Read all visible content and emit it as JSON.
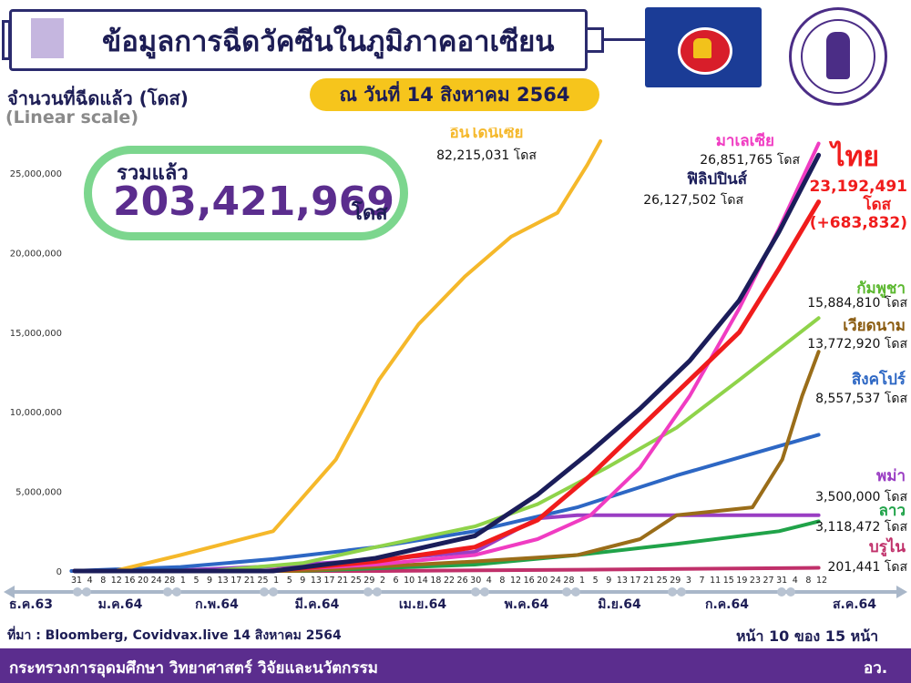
{
  "header": {
    "title": "ข้อมูลการฉีดวัคซีนในภูมิภาคอาเซียน"
  },
  "y_axis": {
    "title": "จำนวนที่ฉีดแล้ว (โดส)",
    "subtitle": "(Linear scale)"
  },
  "date_label": "ณ วันที่ 14 สิงหาคม 2564",
  "total": {
    "label": "รวมแล้ว",
    "value": "203,421,969",
    "unit": "โดส"
  },
  "source": "ที่มา : Bloomberg, Covidvax.live 14 สิงหาคม 2564",
  "page_number": "หน้า 10 ของ 15 หน้า",
  "footer": {
    "ministry": "กระทรวงการอุดมศึกษา วิทยาศาสตร์ วิจัยและนวัตกรรม",
    "abbr": "อว."
  },
  "colors": {
    "title": "#1d1d55",
    "footer": "#5b2d8e",
    "pill": "#f6c51c",
    "total_border": "#7cd68e"
  },
  "chart_data": {
    "type": "line",
    "ylim": [
      0,
      27000000
    ],
    "yticks": [
      "0",
      "5,000,000",
      "10,000,000",
      "15,000,000",
      "20,000,000",
      "25,000,000"
    ],
    "day_ticks": [
      "31",
      "4",
      "8",
      "12",
      "16",
      "20",
      "24",
      "28",
      "1",
      "5",
      "9",
      "13",
      "17",
      "21",
      "25",
      "1",
      "5",
      "9",
      "13",
      "17",
      "21",
      "25",
      "29",
      "2",
      "6",
      "10",
      "14",
      "18",
      "22",
      "26",
      "30",
      "4",
      "8",
      "12",
      "16",
      "20",
      "24",
      "28",
      "1",
      "5",
      "9",
      "13",
      "17",
      "21",
      "25",
      "29",
      "3",
      "7",
      "11",
      "15",
      "19",
      "23",
      "27",
      "31",
      "4",
      "8",
      "12"
    ],
    "month_labels": [
      "ธ.ค.63",
      "ม.ค.64",
      "ก.พ.64",
      "มี.ค.64",
      "เม.ย.64",
      "พ.ค.64",
      "มิ.ย.64",
      "ก.ค.64",
      "ส.ค.64"
    ],
    "series": [
      {
        "name": "อินโดนีเซีย",
        "value_text": "82,215,031 โดส",
        "color": "#f5b82a",
        "x": [
          "2021-01-12",
          "2021-02-01",
          "2021-03-01",
          "2021-03-20",
          "2021-04-02",
          "2021-04-14",
          "2021-04-28",
          "2021-05-12",
          "2021-05-26",
          "2021-06-04",
          "2021-06-08"
        ],
        "y": [
          0,
          1000000,
          2500000,
          7000000,
          12000000,
          15500000,
          18500000,
          21000000,
          22500000,
          25500000,
          27000000
        ]
      },
      {
        "name": "มาเลเซีย",
        "value_text": "26,851,765 โดส",
        "color": "#f03cc2",
        "x": [
          "2021-02-24",
          "2021-04-01",
          "2021-05-01",
          "2021-05-20",
          "2021-06-05",
          "2021-06-20",
          "2021-07-05",
          "2021-07-20",
          "2021-08-01",
          "2021-08-13"
        ],
        "y": [
          0,
          400000,
          1000000,
          2000000,
          3500000,
          6500000,
          11000000,
          16500000,
          21500000,
          26851765
        ]
      },
      {
        "name": "ฟิลิปปินส์",
        "value_text": "26,127,502 โดส",
        "color": "#1b1d5a",
        "x": [
          "2021-03-01",
          "2021-04-01",
          "2021-05-01",
          "2021-05-20",
          "2021-06-05",
          "2021-06-20",
          "2021-07-05",
          "2021-07-20",
          "2021-08-01",
          "2021-08-13"
        ],
        "y": [
          0,
          800000,
          2200000,
          4800000,
          7500000,
          10200000,
          13200000,
          17000000,
          21300000,
          26127502
        ]
      },
      {
        "name": "ไทย",
        "value_text": "23,192,491",
        "value_unit": "โดส",
        "delta": "(+683,832)",
        "color": "#f01c1c",
        "x": [
          "2021-02-28",
          "2021-04-01",
          "2021-05-01",
          "2021-05-20",
          "2021-06-05",
          "2021-06-20",
          "2021-07-05",
          "2021-07-20",
          "2021-08-01",
          "2021-08-13"
        ],
        "y": [
          0,
          600000,
          1500000,
          3200000,
          6000000,
          9000000,
          12000000,
          15000000,
          19000000,
          23192491
        ]
      },
      {
        "name": "กัมพูชา",
        "value_text": "15,884,810 โดส",
        "color": "#8fd34a",
        "x": [
          "2021-02-10",
          "2021-03-10",
          "2021-04-01",
          "2021-05-01",
          "2021-05-20",
          "2021-06-10",
          "2021-07-01",
          "2021-07-20",
          "2021-08-13"
        ],
        "y": [
          0,
          500000,
          1500000,
          2800000,
          4200000,
          6500000,
          9000000,
          12000000,
          15884810
        ]
      },
      {
        "name": "เวียดนาม",
        "value_text": "13,772,920 โดส",
        "color": "#9a6d19",
        "x": [
          "2021-03-08",
          "2021-05-01",
          "2021-06-01",
          "2021-06-20",
          "2021-07-01",
          "2021-07-24",
          "2021-08-02",
          "2021-08-08",
          "2021-08-13"
        ],
        "y": [
          0,
          600000,
          1000000,
          2000000,
          3500000,
          4000000,
          7000000,
          11000000,
          13772920
        ]
      },
      {
        "name": "สิงคโปร์",
        "value_text": "8,557,537 โดส",
        "color": "#2d67c4",
        "x": [
          "2020-12-30",
          "2021-02-01",
          "2021-03-01",
          "2021-04-01",
          "2021-05-01",
          "2021-06-01",
          "2021-07-01",
          "2021-08-13"
        ],
        "y": [
          0,
          250000,
          750000,
          1500000,
          2500000,
          4000000,
          6000000,
          8557537
        ]
      },
      {
        "name": "พม่า",
        "value_text": "3,500,000 โดส",
        "color": "#9a3ec3",
        "x": [
          "2021-01-27",
          "2021-03-01",
          "2021-04-01",
          "2021-05-01",
          "2021-05-20",
          "2021-06-01",
          "2021-08-13"
        ],
        "y": [
          0,
          300000,
          700000,
          1200000,
          3300000,
          3500000,
          3500000
        ]
      },
      {
        "name": "ลาว",
        "value_text": "3,118,472 โดส",
        "color": "#20a349",
        "x": [
          "2021-03-10",
          "2021-05-01",
          "2021-06-01",
          "2021-07-01",
          "2021-08-01",
          "2021-08-13"
        ],
        "y": [
          0,
          400000,
          1000000,
          1700000,
          2500000,
          3118472
        ]
      },
      {
        "name": "บรูไน",
        "value_text": "201,441 โดส",
        "color": "#c0306a",
        "x": [
          "2021-04-02",
          "2021-06-01",
          "2021-08-13"
        ],
        "y": [
          0,
          80000,
          201441
        ]
      }
    ]
  }
}
